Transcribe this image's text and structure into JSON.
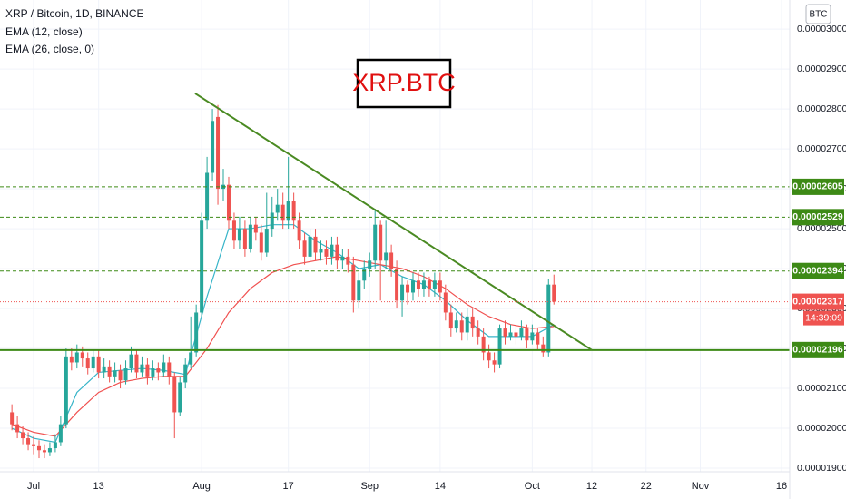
{
  "chart_data": {
    "type": "candlestick",
    "title": "XRP / Bitcoin, 1D, BINANCE",
    "currency": "BTC",
    "annotation": "XRP.BTC",
    "x": [
      -4,
      -3,
      -2,
      -1,
      0,
      1,
      2,
      3,
      4,
      5,
      6,
      7,
      8,
      9,
      10,
      11,
      12,
      13,
      14,
      15,
      16,
      17,
      18,
      19,
      20,
      21,
      22,
      23,
      24,
      25,
      26,
      27,
      28,
      29,
      30,
      31,
      32,
      33,
      34,
      35,
      36,
      37,
      38,
      39,
      40,
      41,
      42,
      43,
      44,
      45,
      46,
      47,
      48,
      49,
      50,
      51,
      52,
      53,
      54,
      55,
      56,
      57,
      58,
      59,
      60,
      61,
      62,
      63,
      64,
      65,
      66,
      67,
      68,
      69,
      70,
      71,
      72,
      73,
      74,
      75,
      76,
      77,
      78,
      79,
      80,
      81,
      82,
      83,
      84,
      85,
      86,
      87,
      88,
      89,
      90,
      91,
      92,
      93,
      94,
      95,
      96
    ],
    "open": [
      2.04e-05,
      2.01e-05,
      1.99e-05,
      1.975e-05,
      1.96e-05,
      1.955e-05,
      1.945e-05,
      1.94e-05,
      1.95e-05,
      1.965e-05,
      2.01e-05,
      2.18e-05,
      2.165e-05,
      2.19e-05,
      2.175e-05,
      2.15e-05,
      2.18e-05,
      2.14e-05,
      2.155e-05,
      2.13e-05,
      2.145e-05,
      2.12e-05,
      2.15e-05,
      2.185e-05,
      2.14e-05,
      2.16e-05,
      2.13e-05,
      2.15e-05,
      2.14e-05,
      2.165e-05,
      2.13e-05,
      2.04e-05,
      2.115e-05,
      2.16e-05,
      2.19e-05,
      2.29e-05,
      2.52e-05,
      2.64e-05,
      2.78e-05,
      2.6e-05,
      2.61e-05,
      2.52e-05,
      2.47e-05,
      2.5e-05,
      2.45e-05,
      2.51e-05,
      2.49e-05,
      2.44e-05,
      2.5e-05,
      2.54e-05,
      2.56e-05,
      2.52e-05,
      2.57e-05,
      2.52e-05,
      2.47e-05,
      2.43e-05,
      2.48e-05,
      2.44e-05,
      2.45e-05,
      2.43e-05,
      2.46e-05,
      2.42e-05,
      2.43e-05,
      2.41e-05,
      2.32e-05,
      2.37e-05,
      2.4e-05,
      2.42e-05,
      2.51e-05,
      2.42e-05,
      2.44e-05,
      2.4e-05,
      2.32e-05,
      2.36e-05,
      2.34e-05,
      2.37e-05,
      2.35e-05,
      2.37e-05,
      2.35e-05,
      2.37e-05,
      2.34e-05,
      2.29e-05,
      2.25e-05,
      2.27e-05,
      2.24e-05,
      2.28e-05,
      2.25e-05,
      2.23e-05,
      2.19e-05,
      2.17e-05,
      2.16e-05,
      2.25e-05,
      2.23e-05,
      2.24e-05,
      2.23e-05,
      2.25e-05,
      2.22e-05,
      2.24e-05,
      2.21e-05,
      2.19e-05,
      2.36e-05
    ],
    "high": [
      2.06e-05,
      2.03e-05,
      2.005e-05,
      1.99e-05,
      1.98e-05,
      1.97e-05,
      1.96e-05,
      1.965e-05,
      1.985e-05,
      2.03e-05,
      2.2e-05,
      2.2e-05,
      2.21e-05,
      2.205e-05,
      2.19e-05,
      2.195e-05,
      2.195e-05,
      2.175e-05,
      2.17e-05,
      2.165e-05,
      2.16e-05,
      2.17e-05,
      2.205e-05,
      2.195e-05,
      2.18e-05,
      2.175e-05,
      2.17e-05,
      2.165e-05,
      2.185e-05,
      2.18e-05,
      2.14e-05,
      2.13e-05,
      2.175e-05,
      2.28e-05,
      2.31e-05,
      2.54e-05,
      2.68e-05,
      2.8e-05,
      2.81e-05,
      2.65e-05,
      2.63e-05,
      2.54e-05,
      2.53e-05,
      2.52e-05,
      2.53e-05,
      2.53e-05,
      2.51e-05,
      2.59e-05,
      2.58e-05,
      2.6e-05,
      2.59e-05,
      2.68e-05,
      2.59e-05,
      2.54e-05,
      2.49e-05,
      2.5e-05,
      2.5e-05,
      2.47e-05,
      2.47e-05,
      2.48e-05,
      2.48e-05,
      2.45e-05,
      2.45e-05,
      2.43e-05,
      2.39e-05,
      2.42e-05,
      2.44e-05,
      2.55e-05,
      2.52e-05,
      2.52e-05,
      2.46e-05,
      2.42e-05,
      2.38e-05,
      2.37e-05,
      2.39e-05,
      2.39e-05,
      2.39e-05,
      2.38e-05,
      2.39e-05,
      2.39e-05,
      2.36e-05,
      2.31e-05,
      2.29e-05,
      2.29e-05,
      2.3e-05,
      2.3e-05,
      2.27e-05,
      2.25e-05,
      2.21e-05,
      2.19e-05,
      2.26e-05,
      2.27e-05,
      2.26e-05,
      2.26e-05,
      2.27e-05,
      2.26e-05,
      2.26e-05,
      2.25e-05,
      2.23e-05,
      2.375e-05,
      2.385e-05
    ],
    "low": [
      1.995e-05,
      1.975e-05,
      1.96e-05,
      1.945e-05,
      1.935e-05,
      1.925e-05,
      1.925e-05,
      1.93e-05,
      1.94e-05,
      1.955e-05,
      2e-05,
      2.145e-05,
      2.15e-05,
      2.155e-05,
      2.135e-05,
      2.14e-05,
      2.125e-05,
      2.125e-05,
      2.115e-05,
      2.115e-05,
      2.1e-05,
      2.11e-05,
      2.14e-05,
      2.125e-05,
      2.13e-05,
      2.11e-05,
      2.12e-05,
      2.12e-05,
      2.13e-05,
      2.11e-05,
      1.975e-05,
      2.03e-05,
      2.1e-05,
      2.15e-05,
      2.18e-05,
      2.28e-05,
      2.5e-05,
      2.62e-05,
      2.56e-05,
      2.57e-05,
      2.5e-05,
      2.45e-05,
      2.45e-05,
      2.43e-05,
      2.44e-05,
      2.47e-05,
      2.42e-05,
      2.43e-05,
      2.48e-05,
      2.52e-05,
      2.5e-05,
      2.5e-05,
      2.5e-05,
      2.45e-05,
      2.41e-05,
      2.42e-05,
      2.42e-05,
      2.42e-05,
      2.41e-05,
      2.41e-05,
      2.4e-05,
      2.4e-05,
      2.39e-05,
      2.29e-05,
      2.3e-05,
      2.35e-05,
      2.38e-05,
      2.4e-05,
      2.32e-05,
      2.4e-05,
      2.38e-05,
      2.3e-05,
      2.28e-05,
      2.31e-05,
      2.32e-05,
      2.33e-05,
      2.33e-05,
      2.33e-05,
      2.33e-05,
      2.32e-05,
      2.27e-05,
      2.23e-05,
      2.24e-05,
      2.22e-05,
      2.22e-05,
      2.23e-05,
      2.21e-05,
      2.17e-05,
      2.15e-05,
      2.14e-05,
      2.15e-05,
      2.21e-05,
      2.22e-05,
      2.21e-05,
      2.22e-05,
      2.2e-05,
      2.21e-05,
      2.195e-05,
      2.18e-05,
      2.18e-05,
      2.31e-05
    ],
    "close": [
      2.01e-05,
      1.99e-05,
      1.975e-05,
      1.96e-05,
      1.955e-05,
      1.945e-05,
      1.94e-05,
      1.95e-05,
      1.965e-05,
      2.01e-05,
      2.18e-05,
      2.165e-05,
      2.19e-05,
      2.175e-05,
      2.15e-05,
      2.18e-05,
      2.14e-05,
      2.155e-05,
      2.13e-05,
      2.145e-05,
      2.12e-05,
      2.15e-05,
      2.185e-05,
      2.14e-05,
      2.16e-05,
      2.13e-05,
      2.15e-05,
      2.14e-05,
      2.165e-05,
      2.13e-05,
      2.04e-05,
      2.115e-05,
      2.16e-05,
      2.19e-05,
      2.29e-05,
      2.52e-05,
      2.64e-05,
      2.77e-05,
      2.6e-05,
      2.61e-05,
      2.52e-05,
      2.47e-05,
      2.5e-05,
      2.45e-05,
      2.51e-05,
      2.49e-05,
      2.44e-05,
      2.5e-05,
      2.54e-05,
      2.56e-05,
      2.52e-05,
      2.57e-05,
      2.52e-05,
      2.47e-05,
      2.43e-05,
      2.48e-05,
      2.44e-05,
      2.45e-05,
      2.43e-05,
      2.46e-05,
      2.42e-05,
      2.43e-05,
      2.41e-05,
      2.32e-05,
      2.37e-05,
      2.4e-05,
      2.42e-05,
      2.51e-05,
      2.42e-05,
      2.44e-05,
      2.4e-05,
      2.32e-05,
      2.36e-05,
      2.34e-05,
      2.37e-05,
      2.35e-05,
      2.37e-05,
      2.35e-05,
      2.37e-05,
      2.34e-05,
      2.29e-05,
      2.25e-05,
      2.27e-05,
      2.24e-05,
      2.28e-05,
      2.25e-05,
      2.23e-05,
      2.19e-05,
      2.17e-05,
      2.16e-05,
      2.25e-05,
      2.23e-05,
      2.24e-05,
      2.23e-05,
      2.25e-05,
      2.22e-05,
      2.24e-05,
      2.21e-05,
      2.19e-05,
      2.36e-05,
      2.317e-05
    ],
    "up_color": "#26a69a",
    "down_color": "#ef5350",
    "series": [
      {
        "name": "EMA (12, close)",
        "color": "#36b4c8",
        "x": [
          -4,
          0,
          4,
          8,
          12,
          16,
          20,
          24,
          28,
          32,
          36,
          40,
          44,
          48,
          52,
          56,
          60,
          64,
          68,
          72,
          76,
          80,
          84,
          88,
          92,
          96
        ],
        "values": [
          2e-05,
          1.975e-05,
          1.965e-05,
          2.09e-05,
          2.14e-05,
          2.145e-05,
          2.15e-05,
          2.145e-05,
          2.135e-05,
          2.33e-05,
          2.5e-05,
          2.5e-05,
          2.51e-05,
          2.51e-05,
          2.47e-05,
          2.44e-05,
          2.4e-05,
          2.41e-05,
          2.38e-05,
          2.36e-05,
          2.32e-05,
          2.27e-05,
          2.23e-05,
          2.23e-05,
          2.23e-05,
          2.26e-05
        ]
      },
      {
        "name": "EMA (26, close, 0)",
        "color": "#f0504f",
        "x": [
          -4,
          0,
          4,
          8,
          12,
          16,
          20,
          24,
          28,
          32,
          36,
          40,
          44,
          48,
          52,
          56,
          60,
          64,
          68,
          72,
          76,
          80,
          84,
          88,
          92,
          96
        ],
        "values": [
          2.01e-05,
          1.99e-05,
          1.98e-05,
          2.04e-05,
          2.09e-05,
          2.115e-05,
          2.125e-05,
          2.13e-05,
          2.13e-05,
          2.2e-05,
          2.29e-05,
          2.35e-05,
          2.39e-05,
          2.41e-05,
          2.42e-05,
          2.43e-05,
          2.42e-05,
          2.41e-05,
          2.4e-05,
          2.38e-05,
          2.35e-05,
          2.31e-05,
          2.28e-05,
          2.26e-05,
          2.25e-05,
          2.255e-05
        ]
      }
    ],
    "trendline": {
      "x": [
        29.8,
        103
      ],
      "values": [
        2.839e-05,
        2.196e-05
      ],
      "color": "#4a8a22"
    },
    "levels": [
      {
        "value": 2.605e-05,
        "style": "dashed"
      },
      {
        "value": 2.529e-05,
        "style": "dashed"
      },
      {
        "value": 2.394e-05,
        "style": "dashed"
      },
      {
        "value": 2.196e-05,
        "style": "solid"
      }
    ],
    "level_color": "#3d8a16",
    "last_price": 2.317e-05,
    "countdown": "14:39:09",
    "xlim": [
      -6.2,
      139.5
    ],
    "ylim": [
      1.891e-05,
      3.073e-05
    ],
    "xticks": [
      {
        "value": 0,
        "label": "Jul"
      },
      {
        "value": 12,
        "label": "13"
      },
      {
        "value": 31,
        "label": "Aug"
      },
      {
        "value": 47,
        "label": "17"
      },
      {
        "value": 62,
        "label": "Sep"
      },
      {
        "value": 75,
        "label": "14"
      },
      {
        "value": 92,
        "label": "Oct"
      },
      {
        "value": 103,
        "label": "12"
      },
      {
        "value": 113,
        "label": "22"
      },
      {
        "value": 123,
        "label": "Nov"
      },
      {
        "value": 138,
        "label": "16"
      }
    ],
    "yticks": [
      {
        "value": 1.9e-05,
        "label": "0.00001900"
      },
      {
        "value": 2e-05,
        "label": "0.00002000"
      },
      {
        "value": 2.1e-05,
        "label": "0.00002100"
      },
      {
        "value": 2.2e-05,
        "label": "0.00002200"
      },
      {
        "value": 2.3e-05,
        "label": "0.00002300"
      },
      {
        "value": 2.4e-05,
        "label": "0.00002400"
      },
      {
        "value": 2.5e-05,
        "label": "0.00002500"
      },
      {
        "value": 2.6e-05,
        "label": "0.00002600"
      },
      {
        "value": 2.7e-05,
        "label": "0.00002700"
      },
      {
        "value": 2.8e-05,
        "label": "0.00002800"
      },
      {
        "value": 2.9e-05,
        "label": "0.00002900"
      },
      {
        "value": 3e-05,
        "label": "0.00003000"
      }
    ],
    "grid": true
  }
}
